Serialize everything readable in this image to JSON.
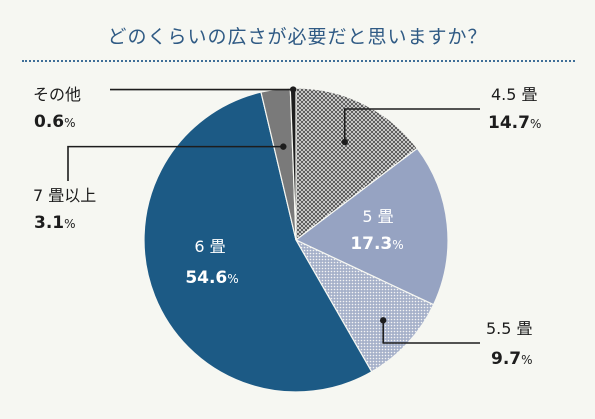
{
  "title": "どのくらいの広さが必要だと思いますか？",
  "chart_data": {
    "type": "pie",
    "title": "どのくらいの広さが必要だと思いますか？",
    "unit": "%",
    "slices": [
      {
        "label": "4.5 畳",
        "value": 14.7,
        "value_text": "14.7",
        "color": "#cfd0cf",
        "pattern": "crosshatch"
      },
      {
        "label": "5 畳",
        "value": 17.3,
        "value_text": "17.3",
        "color": "#96a3c2",
        "pattern": "solid"
      },
      {
        "label": "5.5 畳",
        "value": 9.7,
        "value_text": "9.7",
        "color": "#8d9bb8",
        "pattern": "dots"
      },
      {
        "label": "6 畳",
        "value": 54.6,
        "value_text": "54.6",
        "color": "#1c5a85",
        "pattern": "solid"
      },
      {
        "label": "7 畳以上",
        "value": 3.1,
        "value_text": "3.1",
        "color": "#7a7a7a",
        "pattern": "solid"
      },
      {
        "label": "その他",
        "value": 0.6,
        "value_text": "0.6",
        "color": "#1e1e1e",
        "pattern": "solid"
      }
    ],
    "start": "12 o'clock",
    "direction": "clockwise",
    "legend": "none"
  }
}
